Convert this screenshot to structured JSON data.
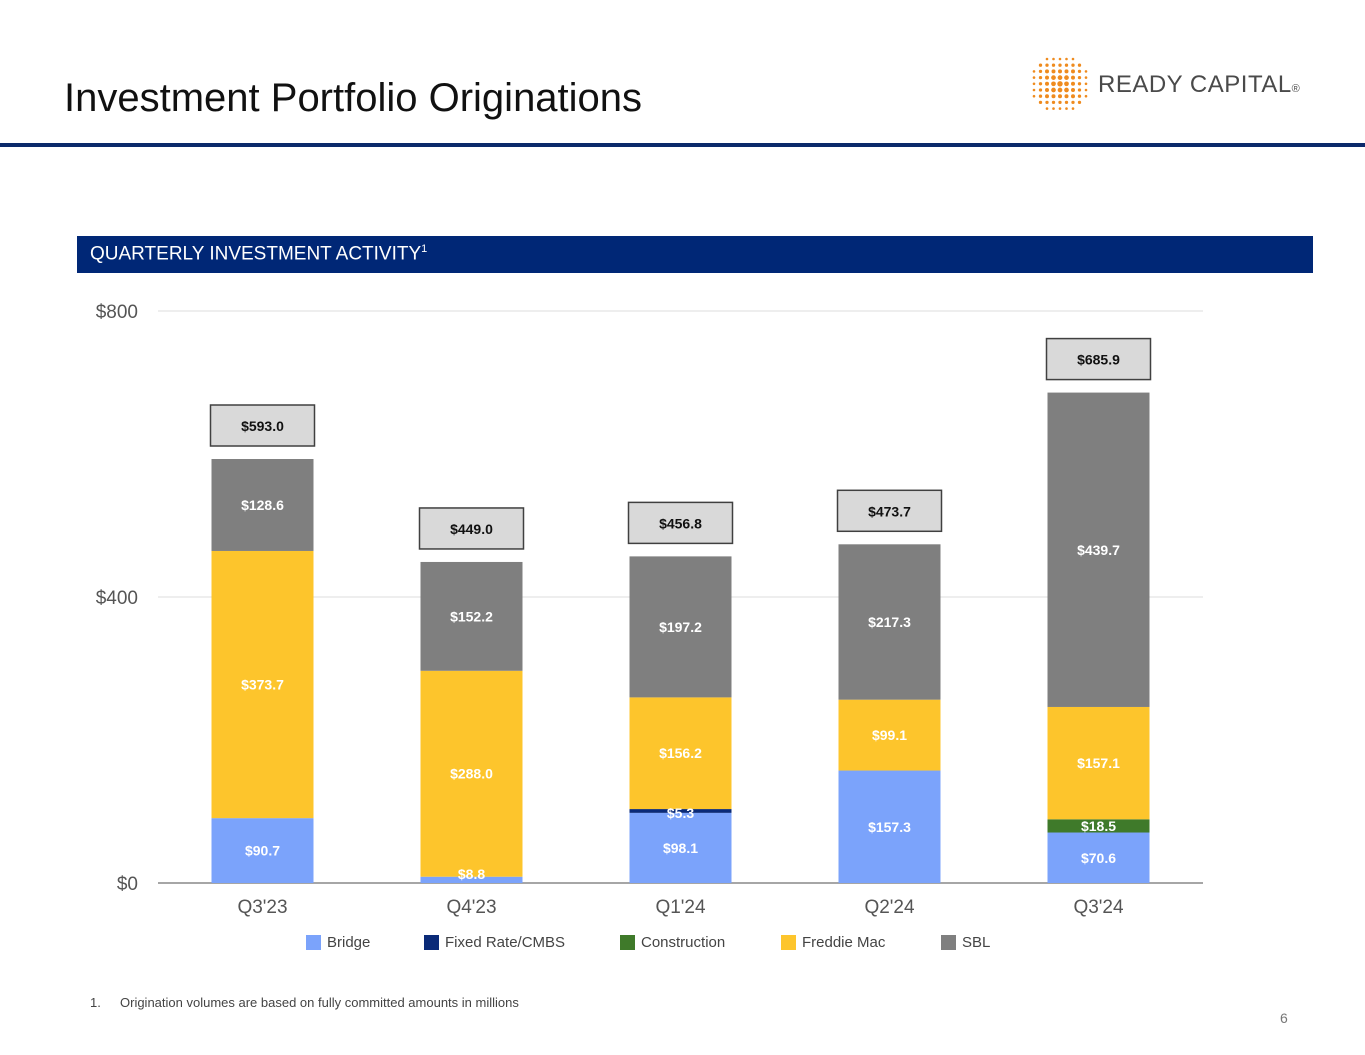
{
  "page": {
    "title": "Investment Portfolio Originations",
    "section_title": "QUARTERLY INVESTMENT ACTIVITY",
    "section_superscript": "1",
    "footnote_number": "1.",
    "footnote_text": "Origination volumes are based on fully committed amounts in millions",
    "page_number": "6"
  },
  "logo": {
    "text": "READY CAPITAL",
    "mark": "®"
  },
  "colors": {
    "Bridge": "#7ba3fb",
    "Fixed Rate/CMBS": "#0a2a78",
    "Construction": "#3f7a2a",
    "Freddie Mac": "#fdc52c",
    "SBL": "#7f7f7f",
    "banner": "#002776",
    "rule": "#0b2a6b",
    "logo_dots": "#ef8b1e"
  },
  "chart_data": {
    "type": "bar",
    "stacked": true,
    "categories": [
      "Q3'23",
      "Q4'23",
      "Q1'24",
      "Q2'24",
      "Q3'24"
    ],
    "series": [
      {
        "name": "Bridge",
        "values": [
          90.7,
          8.8,
          98.1,
          157.3,
          70.6
        ],
        "labels": [
          "$90.7",
          "$8.8",
          "$98.1",
          "$157.3",
          "$70.6"
        ]
      },
      {
        "name": "Fixed Rate/CMBS",
        "values": [
          0,
          0,
          5.3,
          0,
          0
        ],
        "labels": [
          "",
          "",
          "$5.3",
          "",
          ""
        ]
      },
      {
        "name": "Construction",
        "values": [
          0,
          0,
          0,
          0,
          18.5
        ],
        "labels": [
          "",
          "",
          "",
          "",
          "$18.5"
        ]
      },
      {
        "name": "Freddie Mac",
        "values": [
          373.7,
          288.0,
          156.2,
          99.1,
          157.1
        ],
        "labels": [
          "$373.7",
          "$288.0",
          "$156.2",
          "$99.1",
          "$157.1"
        ]
      },
      {
        "name": "SBL",
        "values": [
          128.6,
          152.2,
          197.2,
          217.3,
          439.7
        ],
        "labels": [
          "$128.6",
          "$152.2",
          "$197.2",
          "$217.3",
          "$439.7"
        ]
      }
    ],
    "totals": [
      593.0,
      449.0,
      456.8,
      473.7,
      685.9
    ],
    "total_labels": [
      "$593.0",
      "$449.0",
      "$456.8",
      "$473.7",
      "$685.9"
    ],
    "ylim": [
      0,
      800
    ],
    "yticks": [
      0,
      400,
      800
    ],
    "ytick_labels": [
      "$0",
      "$400",
      "$800"
    ],
    "grid": true,
    "legend_position": "bottom",
    "units": "millions"
  }
}
